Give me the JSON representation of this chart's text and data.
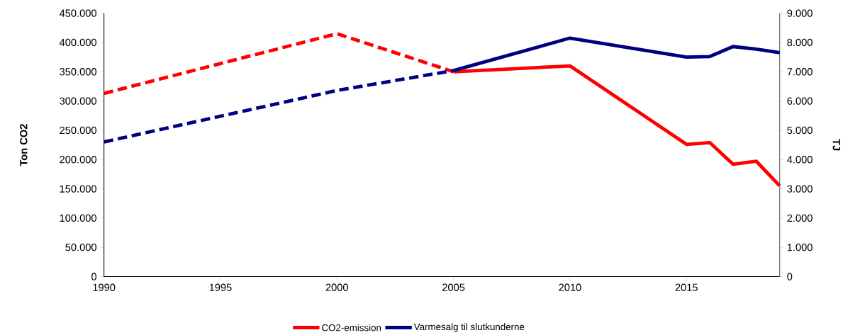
{
  "chart_data": {
    "type": "line",
    "ylabel": "Ton CO2",
    "y2label": "TJ",
    "xlim": [
      1990,
      2019
    ],
    "xticks": [
      1990,
      1995,
      2000,
      2005,
      2010,
      2015
    ],
    "ylim": [
      0,
      450000
    ],
    "yticks": [
      {
        "value": 0,
        "label": "0"
      },
      {
        "value": 50000,
        "label": "50.000"
      },
      {
        "value": 100000,
        "label": "100.000"
      },
      {
        "value": 150000,
        "label": "150.000"
      },
      {
        "value": 200000,
        "label": "200.000"
      },
      {
        "value": 250000,
        "label": "250.000"
      },
      {
        "value": 300000,
        "label": "300.000"
      },
      {
        "value": 350000,
        "label": "350.000"
      },
      {
        "value": 400000,
        "label": "400.000"
      },
      {
        "value": 450000,
        "label": "450.000"
      }
    ],
    "y2lim": [
      0,
      9000
    ],
    "y2ticks": [
      {
        "value": 0,
        "label": "0"
      },
      {
        "value": 1000,
        "label": "1.000"
      },
      {
        "value": 2000,
        "label": "2.000"
      },
      {
        "value": 3000,
        "label": "3.000"
      },
      {
        "value": 4000,
        "label": "4.000"
      },
      {
        "value": 5000,
        "label": "5.000"
      },
      {
        "value": 6000,
        "label": "6.000"
      },
      {
        "value": 7000,
        "label": "7.000"
      },
      {
        "value": 8000,
        "label": "8.000"
      },
      {
        "value": 9000,
        "label": "9.000"
      }
    ],
    "grid": false,
    "legend": "bottom",
    "marker": "none",
    "series": [
      {
        "color": "#ff0000",
        "line_style": "dashed",
        "x": [
          1990,
          2000,
          2005
        ],
        "values": [
          313000,
          415000,
          350000
        ]
      },
      {
        "name": "CO2-emission",
        "color": "#ff0000",
        "line_style": "solid",
        "x": [
          2005,
          2010,
          2015,
          2016,
          2017,
          2018,
          2019
        ],
        "values": [
          350000,
          360000,
          226000,
          229000,
          192000,
          197000,
          155000
        ]
      },
      {
        "color": "#000080",
        "line_style": "dashed",
        "axis": "y2",
        "x": [
          1990,
          2000,
          2005
        ],
        "values": [
          4600,
          6360,
          7040
        ]
      },
      {
        "name": "Varmesalg til slutkunderne",
        "color": "#000080",
        "line_style": "solid",
        "axis": "y2",
        "x": [
          2005,
          2010,
          2015,
          2016,
          2017,
          2018,
          2019
        ],
        "values": [
          7040,
          8150,
          7500,
          7520,
          7860,
          7770,
          7650
        ]
      }
    ]
  }
}
